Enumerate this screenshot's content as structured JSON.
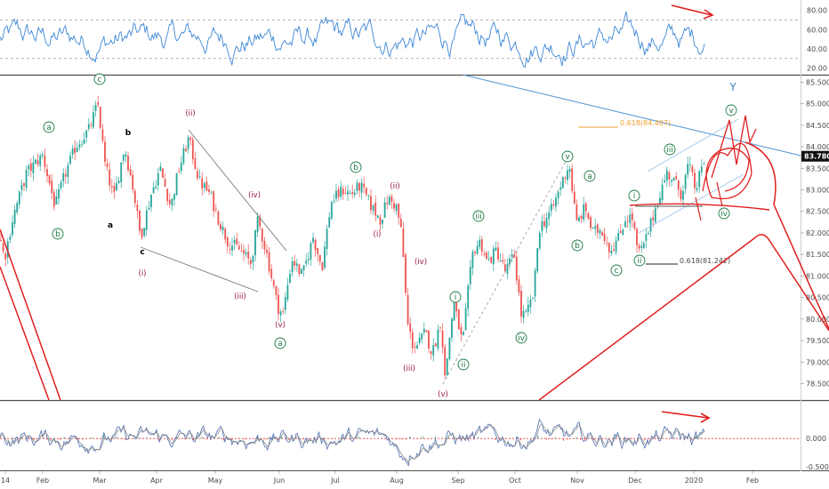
{
  "chart_data": [
    {
      "type": "line",
      "panel": "oscillator-top",
      "y_ticks": [
        "80.00",
        "60.00",
        "40.00",
        "20.00"
      ],
      "ylim": [
        15,
        88
      ],
      "levels": [
        70,
        30
      ],
      "series_color": "#3d87d6"
    },
    {
      "type": "candlestick",
      "panel": "price",
      "ylim": [
        78.2,
        85.55
      ],
      "y_ticks": [
        "85.500",
        "85.000",
        "84.500",
        "84.000",
        "83.500",
        "83.000",
        "82.500",
        "82.000",
        "81.500",
        "81.000",
        "80.500",
        "80.000",
        "79.500",
        "79.000",
        "78.500"
      ],
      "last_price": "83.780",
      "up_color": "#26a69a",
      "down_color": "#ef5350",
      "path": [
        [
          0,
          81.9
        ],
        [
          5,
          81.4
        ],
        [
          15,
          82.4
        ],
        [
          30,
          83.4
        ],
        [
          48,
          83.8
        ],
        [
          62,
          82.6
        ],
        [
          72,
          83.3
        ],
        [
          85,
          84.0
        ],
        [
          100,
          84.4
        ],
        [
          110,
          85.0
        ],
        [
          118,
          83.6
        ],
        [
          128,
          82.8
        ],
        [
          140,
          84.0
        ],
        [
          150,
          83.0
        ],
        [
          158,
          81.9
        ],
        [
          170,
          82.9
        ],
        [
          180,
          83.5
        ],
        [
          192,
          82.6
        ],
        [
          200,
          83.4
        ],
        [
          212,
          84.2
        ],
        [
          224,
          83.2
        ],
        [
          236,
          82.9
        ],
        [
          246,
          82.3
        ],
        [
          256,
          81.8
        ],
        [
          270,
          81.6
        ],
        [
          282,
          81.3
        ],
        [
          290,
          82.3
        ],
        [
          300,
          81.5
        ],
        [
          312,
          80.3
        ],
        [
          318,
          80.1
        ],
        [
          328,
          81.4
        ],
        [
          340,
          81.0
        ],
        [
          352,
          81.9
        ],
        [
          362,
          81.2
        ],
        [
          372,
          82.7
        ],
        [
          385,
          83.0
        ],
        [
          395,
          82.9
        ],
        [
          405,
          83.1
        ],
        [
          418,
          82.6
        ],
        [
          428,
          82.3
        ],
        [
          436,
          82.8
        ],
        [
          446,
          82.6
        ],
        [
          452,
          81.9
        ],
        [
          458,
          79.9
        ],
        [
          464,
          79.4
        ],
        [
          470,
          79.4
        ],
        [
          478,
          79.7
        ],
        [
          486,
          79.2
        ],
        [
          496,
          80.0
        ],
        [
          500,
          78.6
        ],
        [
          510,
          80.4
        ],
        [
          520,
          79.4
        ],
        [
          526,
          80.6
        ],
        [
          532,
          81.6
        ],
        [
          540,
          81.8
        ],
        [
          548,
          81.3
        ],
        [
          558,
          81.6
        ],
        [
          568,
          81.1
        ],
        [
          578,
          81.5
        ],
        [
          586,
          80.1
        ],
        [
          592,
          80.1
        ],
        [
          600,
          80.6
        ],
        [
          606,
          82.1
        ],
        [
          616,
          82.4
        ],
        [
          622,
          82.6
        ],
        [
          632,
          83.2
        ],
        [
          640,
          83.6
        ],
        [
          648,
          82.2
        ],
        [
          658,
          82.6
        ],
        [
          666,
          82.0
        ],
        [
          676,
          82.1
        ],
        [
          686,
          81.6
        ],
        [
          696,
          81.9
        ],
        [
          704,
          82.4
        ],
        [
          712,
          82.3
        ],
        [
          716,
          81.6
        ],
        [
          722,
          81.6
        ],
        [
          730,
          82.1
        ],
        [
          740,
          82.8
        ],
        [
          750,
          83.4
        ],
        [
          758,
          83.2
        ],
        [
          766,
          82.9
        ],
        [
          774,
          83.6
        ],
        [
          782,
          83.0
        ],
        [
          792,
          83.7
        ]
      ],
      "annotations": {
        "title_letter": "Y",
        "fib_upper": "0.618(84.407)",
        "fib_lower": "0.618(81.242)",
        "green_circled": [
          "a",
          "b",
          "c",
          "a",
          "b",
          "iii",
          "i",
          "ii",
          "iv",
          "v",
          "a",
          "b",
          "c",
          "i",
          "ii",
          "iii",
          "iv",
          "v"
        ],
        "maroon": [
          "(ii)",
          "(iv)",
          "(i)",
          "(iii)",
          "(v)",
          "(ii)",
          "(i)",
          "(iv)",
          "(iii)",
          "(v)"
        ],
        "black": [
          "b",
          "a",
          "c"
        ]
      }
    },
    {
      "type": "histogram",
      "panel": "oscillator-bottom",
      "y_ticks": [
        "0.000",
        "-0.500"
      ],
      "ylim": [
        -0.55,
        0.65
      ],
      "zero_color": "#e53935"
    }
  ],
  "x_axis": {
    "labels": [
      "14",
      "Feb",
      "Mar",
      "Apr",
      "May",
      "Jun",
      "Jul",
      "Aug",
      "Sep",
      "Oct",
      "Nov",
      "Dec",
      "2020",
      "Feb"
    ]
  }
}
